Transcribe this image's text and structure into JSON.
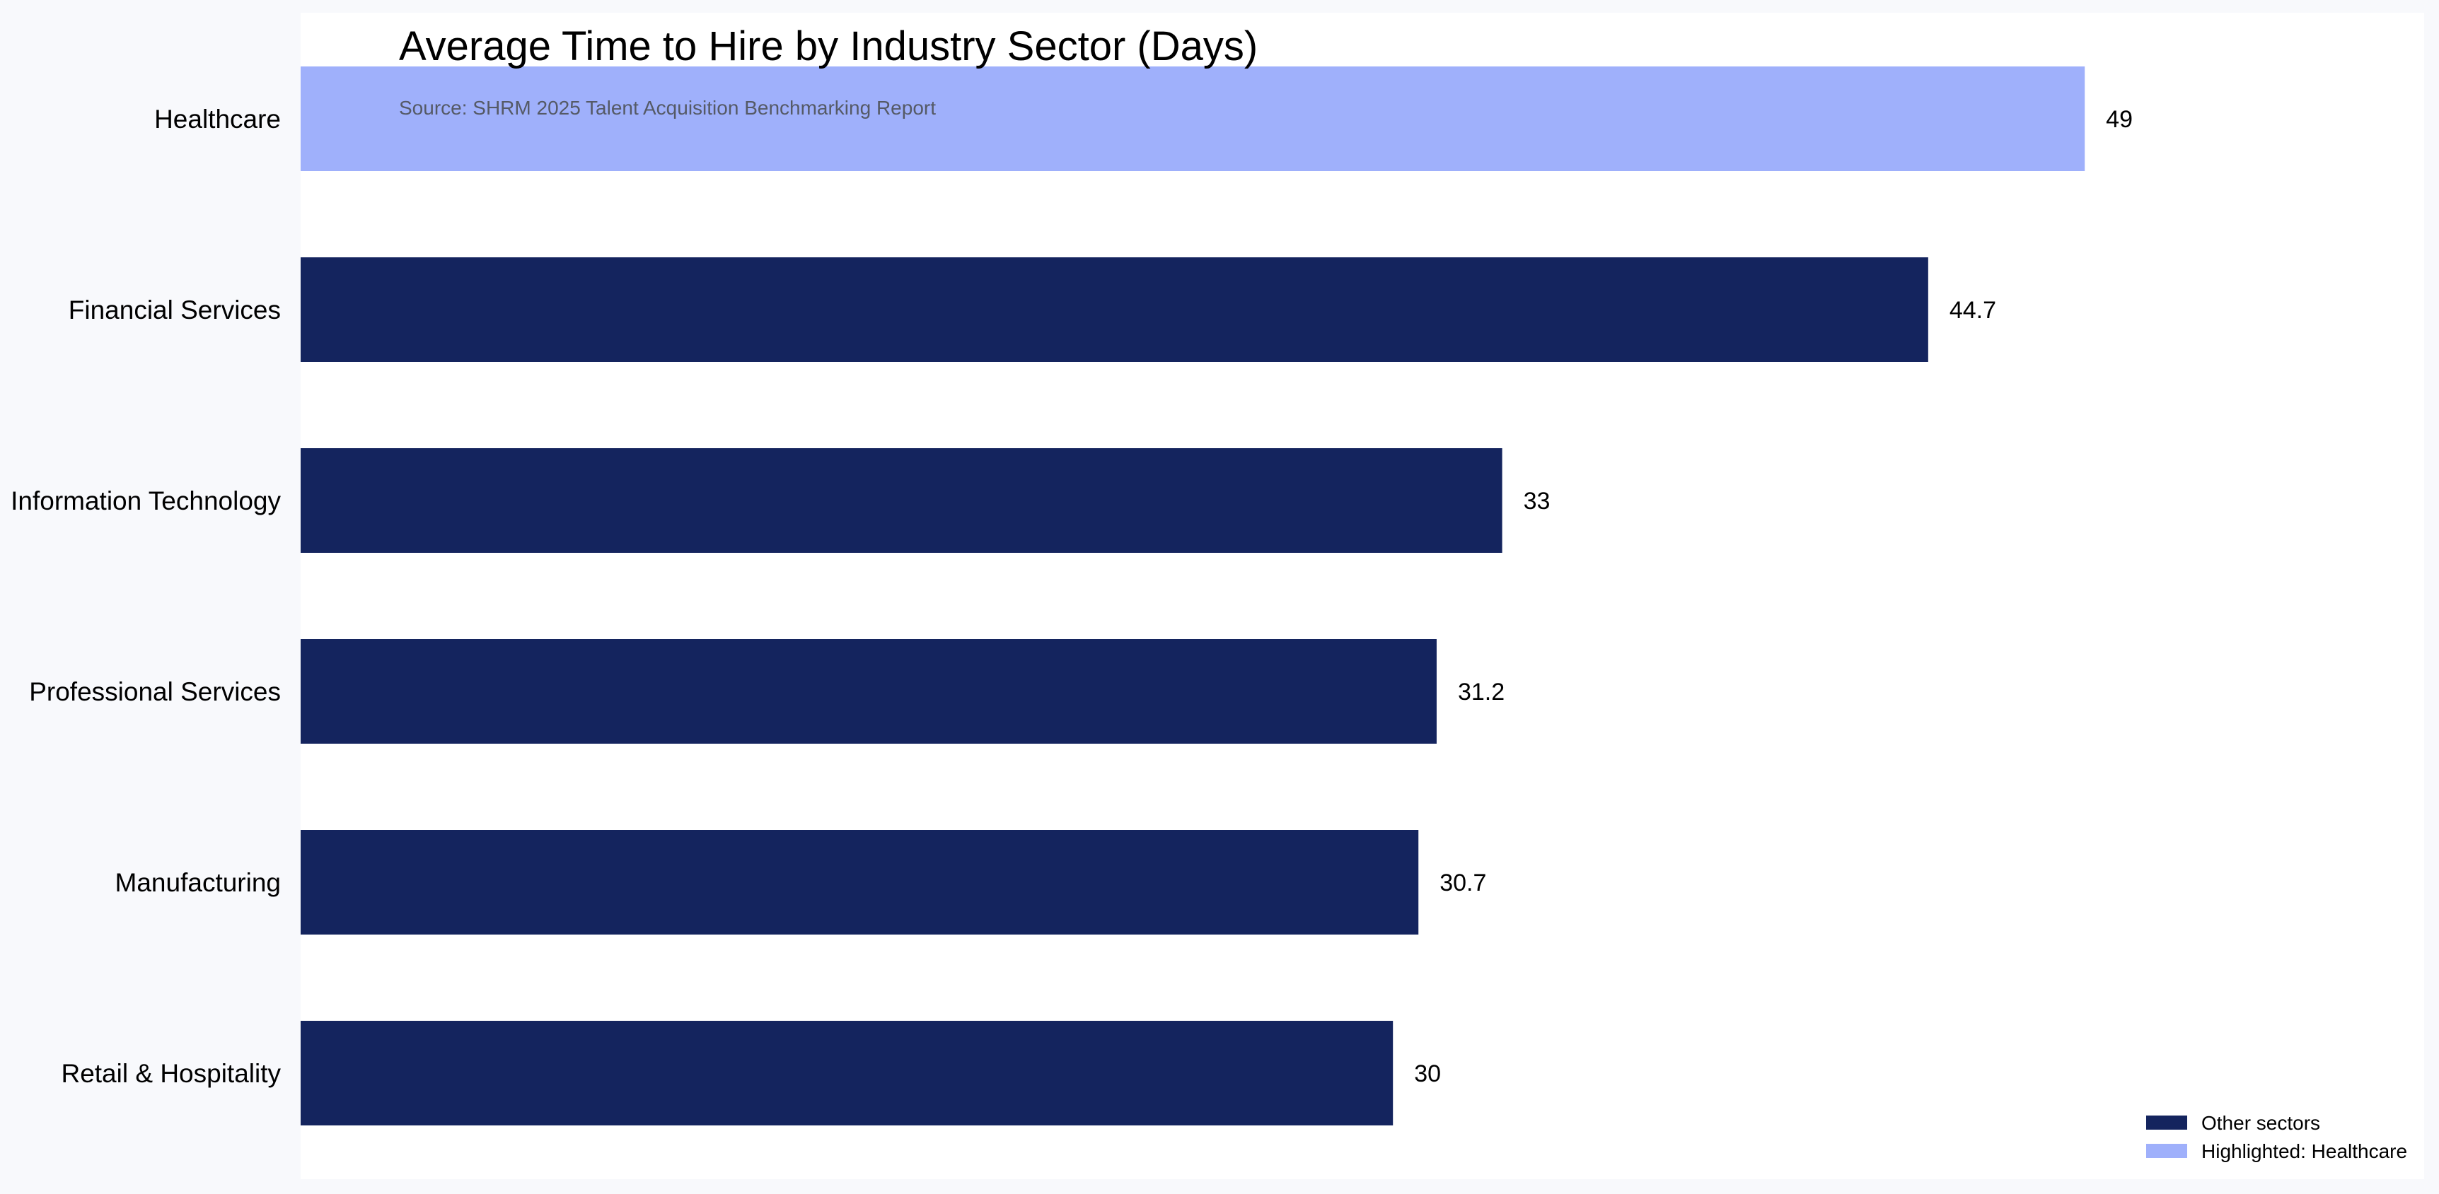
{
  "chart_data": {
    "type": "bar",
    "orientation": "horizontal",
    "title": "Average Time to Hire by Industry Sector (Days)",
    "subtitle": "Source: SHRM 2025 Talent Acquisition Benchmarking Report",
    "categories": [
      "Healthcare",
      "Financial Services",
      "Information Technology",
      "Professional Services",
      "Manufacturing",
      "Retail & Hospitality"
    ],
    "values": [
      49,
      44.7,
      33,
      31.2,
      30.7,
      30
    ],
    "value_labels": [
      "49",
      "44.7",
      "33",
      "31.2",
      "30.7",
      "30"
    ],
    "highlighted": [
      true,
      false,
      false,
      false,
      false,
      false
    ],
    "xlim": [
      0,
      57.7
    ],
    "grid": false,
    "legend": {
      "placement": "bottom-right",
      "entries": [
        {
          "label": "Other sectors",
          "color": "#14245e"
        },
        {
          "label": "Highlighted: Healthcare",
          "color": "#9fb0fb"
        }
      ]
    },
    "colors": {
      "default": "#14245e",
      "highlight": "#9fb0fb",
      "panel": "#ffffff",
      "page": "#f8f9fc"
    }
  }
}
